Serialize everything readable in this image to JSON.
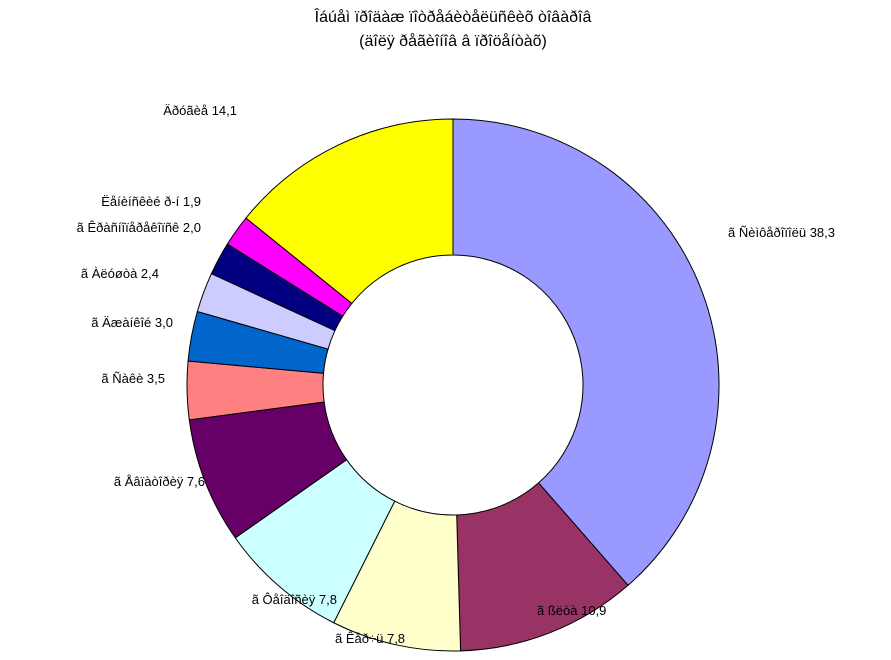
{
  "chart_data": {
    "type": "donut",
    "title": "Îáúåì ïðîäàæ ïîòðåáèòåëüñêèõ òîâàðîâ",
    "subtitle": "(äîëÿ ðåãèîíîâ â ïðîöåíòàõ)",
    "categories": [
      "ã Ñèìôåðîïîëü",
      "ã ßëòà",
      "ã Êåð÷ü",
      "ã Ôåîäîñèÿ",
      "ã Åâïàòîðèÿ",
      "ã Ñàêè",
      "ã Äæàíêîé",
      "ã Àëóøòà",
      "ã Êðàñíîïåðåêîïñê",
      "Ëåíèíñêèé ð-í",
      "Äðóãèå"
    ],
    "values": [
      38.3,
      10.9,
      7.8,
      7.8,
      7.6,
      3.5,
      3.0,
      2.4,
      2.0,
      1.9,
      14.1
    ],
    "value_labels": [
      "38,3",
      "10,9",
      "7,8",
      "7,8",
      "7,6",
      "3,5",
      "3,0",
      "2,4",
      "2,0",
      "1,9",
      "14,1"
    ],
    "colors": [
      "#9999ff",
      "#993366",
      "#ffffcc",
      "#ccffff",
      "#660066",
      "#ff8080",
      "#0066cc",
      "#ccccff",
      "#000080",
      "#ff00ff",
      "#ffff00"
    ]
  }
}
